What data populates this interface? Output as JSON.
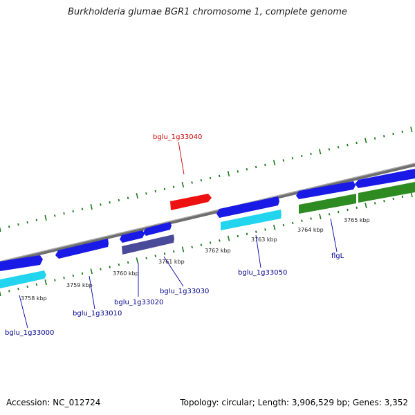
{
  "title": "Burkholderia glumae BGR1 chromosome 1, complete genome",
  "footer": {
    "accession": "Accession: NC_012724",
    "summary": "Topology: circular; Length: 3,906,529 bp; Genes: 3,352"
  },
  "colors": {
    "highlight_gene": "#ee1111",
    "cds_blue": "#1a1ae6",
    "cds_cyan": "#22d4ee",
    "cds_green": "#2e8b22",
    "cds_slate": "#4a4a9a",
    "backbone": "#888888",
    "tick_green": "#1a7a1a",
    "label_blue": "#00008b",
    "label_red": "#cc0000"
  },
  "tick_labels": [
    "3758 kbp",
    "3759 kbp",
    "3760 kbp",
    "3761 kbp",
    "3762 kbp",
    "3763 kbp",
    "3764 kbp",
    "3765 kbp"
  ],
  "gene_labels": {
    "bglu_1g33040": "bglu_1g33040",
    "bglu_1g33000": "bglu_1g33000",
    "bglu_1g33010": "bglu_1g33010",
    "bglu_1g33020": "bglu_1g33020",
    "bglu_1g33030": "bglu_1g33030",
    "bglu_1g33050": "bglu_1g33050",
    "flgL": "flgL"
  }
}
